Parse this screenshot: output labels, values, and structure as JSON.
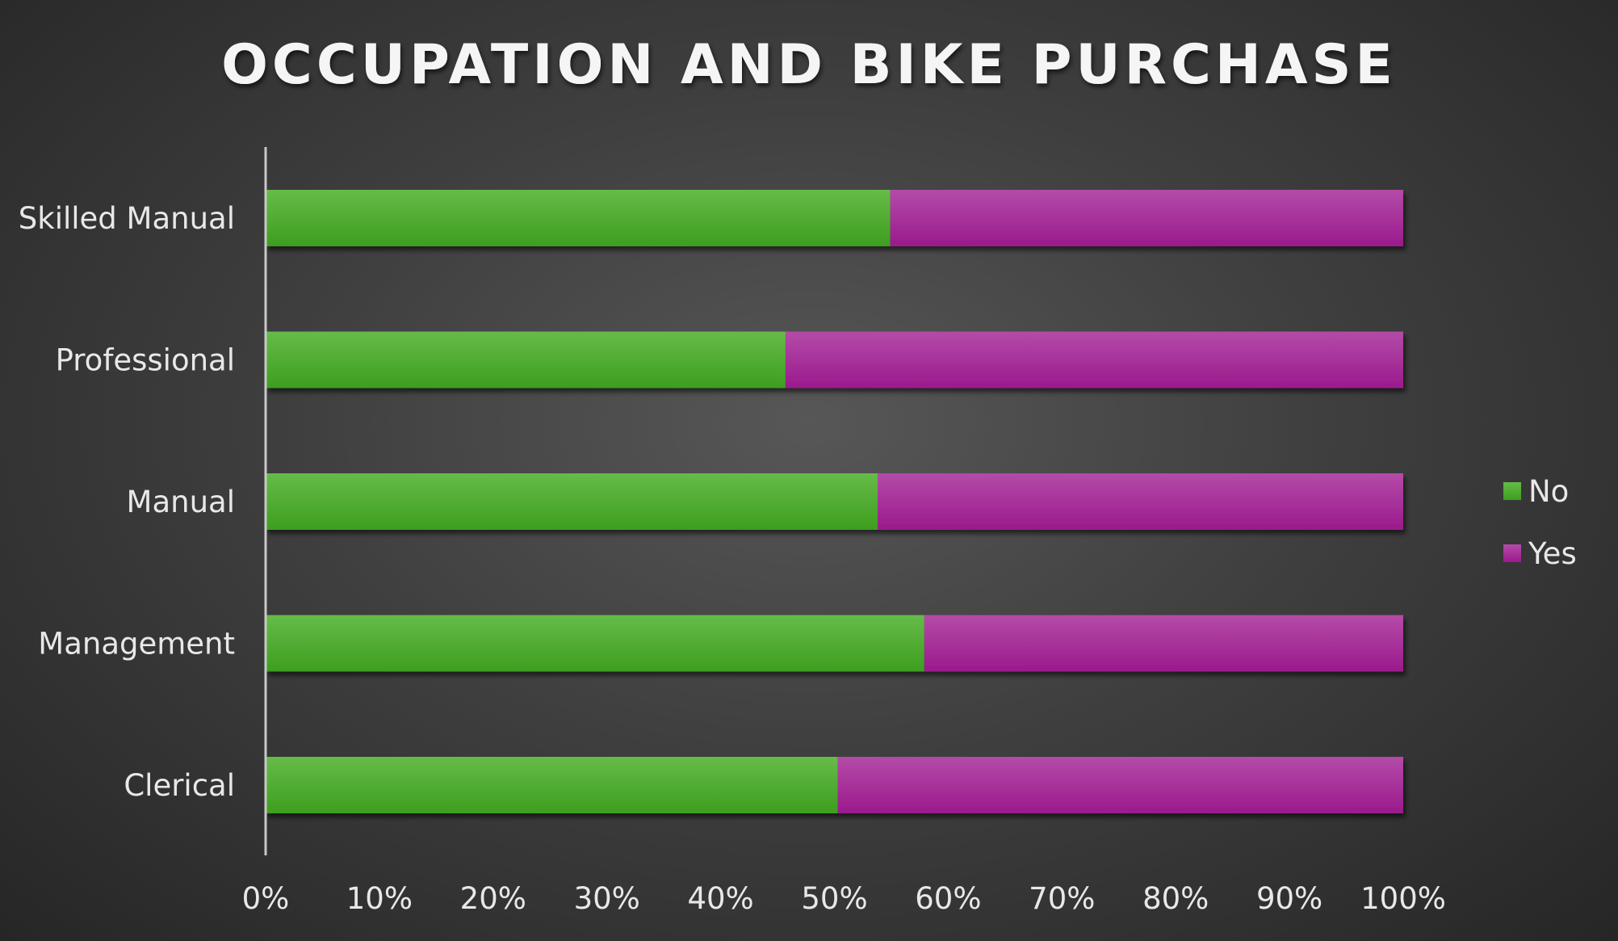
{
  "chart_data": {
    "type": "bar",
    "orientation": "horizontal",
    "stacked": "percent",
    "title": "OCCUPATION AND BIKE PURCHASE",
    "categories": [
      "Skilled Manual",
      "Professional",
      "Manual",
      "Management",
      "Clerical"
    ],
    "series": [
      {
        "name": "No",
        "values": [
          0.549,
          0.457,
          0.538,
          0.579,
          0.503
        ],
        "color": "#4caf2f"
      },
      {
        "name": "Yes",
        "values": [
          0.451,
          0.543,
          0.462,
          0.421,
          0.497
        ],
        "color": "#a8239a"
      }
    ],
    "xlim": [
      0,
      1
    ],
    "x_ticks": [
      "0%",
      "10%",
      "20%",
      "30%",
      "40%",
      "50%",
      "60%",
      "70%",
      "80%",
      "90%",
      "100%"
    ],
    "grid": false,
    "legend_position": "right"
  }
}
